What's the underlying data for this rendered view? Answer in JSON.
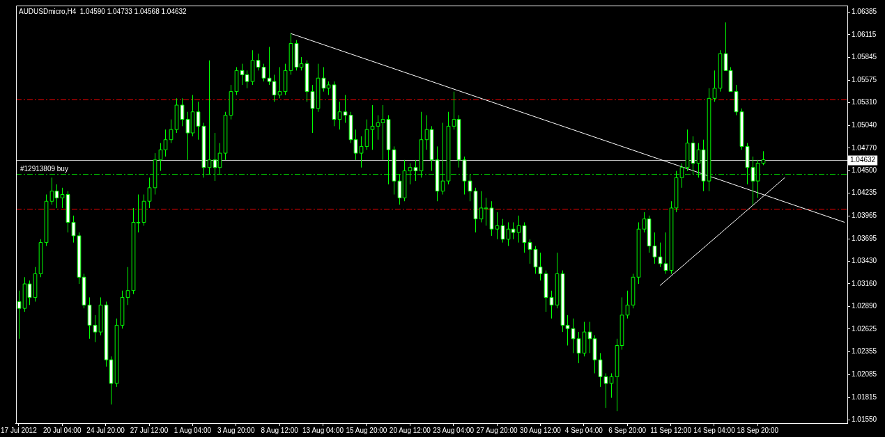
{
  "chart_data": {
    "type": "candlestick",
    "title": "AUDUSDmicro,H4  1.04590 1.04733 1.04568 1.04632",
    "color": "#00ff00",
    "categories": [
      "17 Jul 2012",
      null,
      null,
      null,
      null,
      null,
      null,
      null,
      "20 Jul 04:00",
      null,
      null,
      null,
      null,
      null,
      null,
      null,
      "24 Jul 20:00",
      null,
      null,
      null,
      null,
      null,
      null,
      null,
      "27 Jul 12:00",
      null,
      null,
      null,
      null,
      null,
      null,
      null,
      "1 Aug 04:00",
      null,
      null,
      null,
      null,
      null,
      null,
      null,
      "3 Aug 20:00",
      null,
      null,
      null,
      null,
      null,
      null,
      null,
      "8 Aug 12:00",
      null,
      null,
      null,
      null,
      null,
      null,
      null,
      "13 Aug 04:00",
      null,
      null,
      null,
      null,
      null,
      null,
      null,
      "15 Aug 20:00",
      null,
      null,
      null,
      null,
      null,
      null,
      null,
      "20 Aug 12:00",
      null,
      null,
      null,
      null,
      null,
      null,
      null,
      "23 Aug 04:00",
      null,
      null,
      null,
      null,
      null,
      null,
      null,
      "27 Aug 20:00",
      null,
      null,
      null,
      null,
      null,
      null,
      null,
      "30 Aug 12:00",
      null,
      null,
      null,
      null,
      null,
      null,
      null,
      "4 Sep 04:00",
      null,
      null,
      null,
      null,
      null,
      null,
      null,
      "6 Sep 20:00",
      null,
      null,
      null,
      null,
      null,
      null,
      null,
      "11 Sep 12:00",
      null,
      null,
      null,
      null,
      null,
      null,
      null,
      "14 Sep 04:00",
      null,
      null,
      null,
      null,
      null,
      null,
      null,
      "18 Sep 20:00",
      null,
      null,
      null,
      null,
      null,
      null,
      null,
      null,
      null,
      null,
      null,
      null,
      null,
      null,
      null,
      null
    ],
    "ohlc": [
      [
        1.0295,
        1.0308,
        1.0251,
        1.0287
      ],
      [
        1.0287,
        1.0324,
        1.0283,
        1.0316
      ],
      [
        1.0316,
        1.032,
        1.0291,
        1.03
      ],
      [
        1.03,
        1.0336,
        1.0295,
        1.0328
      ],
      [
        1.0328,
        1.0369,
        1.0324,
        1.0365
      ],
      [
        1.0365,
        1.0422,
        1.0361,
        1.0414
      ],
      [
        1.0414,
        1.0442,
        1.041,
        1.0426
      ],
      [
        1.0426,
        1.0434,
        1.0406,
        1.0418
      ],
      [
        1.0418,
        1.043,
        1.0406,
        1.0422
      ],
      [
        1.0422,
        1.0426,
        1.0377,
        1.0389
      ],
      [
        1.0389,
        1.0397,
        1.0365,
        1.0373
      ],
      [
        1.0373,
        1.0377,
        1.0316,
        1.0324
      ],
      [
        1.0324,
        1.0328,
        1.0287,
        1.0291
      ],
      [
        1.0291,
        1.03,
        1.0251,
        1.0267
      ],
      [
        1.0267,
        1.0279,
        1.0247,
        1.0259
      ],
      [
        1.0259,
        1.03,
        1.0255,
        1.0291
      ],
      [
        1.0291,
        1.0295,
        1.0218,
        1.0226
      ],
      [
        1.0226,
        1.023,
        1.0173,
        1.0198
      ],
      [
        1.0198,
        1.0275,
        1.0194,
        1.0267
      ],
      [
        1.0267,
        1.0308,
        1.0263,
        1.03
      ],
      [
        1.03,
        1.0336,
        1.0291,
        1.0308
      ],
      [
        1.0308,
        1.0406,
        1.0304,
        1.0389
      ],
      [
        1.0389,
        1.0422,
        1.0377,
        1.0389
      ],
      [
        1.0389,
        1.0422,
        1.0385,
        1.0414
      ],
      [
        1.0414,
        1.0442,
        1.0406,
        1.043
      ],
      [
        1.043,
        1.0471,
        1.0422,
        1.0463
      ],
      [
        1.0463,
        1.0483,
        1.045,
        1.0475
      ],
      [
        1.0475,
        1.0499,
        1.0467,
        1.0487
      ],
      [
        1.0487,
        1.0511,
        1.0483,
        1.0499
      ],
      [
        1.0499,
        1.0536,
        1.0495,
        1.0528
      ],
      [
        1.0528,
        1.0536,
        1.0503,
        1.0511
      ],
      [
        1.0511,
        1.052,
        1.0463,
        1.0495
      ],
      [
        1.0495,
        1.054,
        1.0491,
        1.052
      ],
      [
        1.052,
        1.0532,
        1.0487,
        1.0503
      ],
      [
        1.0503,
        1.0507,
        1.0442,
        1.0454
      ],
      [
        1.0454,
        1.0581,
        1.0446,
        1.0463
      ],
      [
        1.0463,
        1.0495,
        1.0438,
        1.0454
      ],
      [
        1.0454,
        1.0483,
        1.0446,
        1.0471
      ],
      [
        1.0471,
        1.052,
        1.0463,
        1.0516
      ],
      [
        1.0516,
        1.0552,
        1.0511,
        1.0544
      ],
      [
        1.0544,
        1.0573,
        1.054,
        1.0569
      ],
      [
        1.0569,
        1.0577,
        1.0552,
        1.0564
      ],
      [
        1.0564,
        1.0569,
        1.0548,
        1.0556
      ],
      [
        1.0556,
        1.0593,
        1.0552,
        1.0581
      ],
      [
        1.0581,
        1.0589,
        1.0569,
        1.0573
      ],
      [
        1.0573,
        1.0577,
        1.0556,
        1.056
      ],
      [
        1.056,
        1.0597,
        1.0552,
        1.0556
      ],
      [
        1.0556,
        1.0564,
        1.0532,
        1.054
      ],
      [
        1.054,
        1.0573,
        1.0536,
        1.0544
      ],
      [
        1.0544,
        1.0577,
        1.054,
        1.0569
      ],
      [
        1.0569,
        1.0613,
        1.0564,
        1.0601
      ],
      [
        1.0601,
        1.0605,
        1.0569,
        1.0573
      ],
      [
        1.0573,
        1.0585,
        1.0569,
        1.0577
      ],
      [
        1.0577,
        1.0581,
        1.0532,
        1.0544
      ],
      [
        1.0544,
        1.0552,
        1.0495,
        1.0524
      ],
      [
        1.0524,
        1.0577,
        1.052,
        1.056
      ],
      [
        1.056,
        1.0573,
        1.0544,
        1.0548
      ],
      [
        1.0548,
        1.0556,
        1.054,
        1.0552
      ],
      [
        1.0552,
        1.0556,
        1.0503,
        1.0511
      ],
      [
        1.0511,
        1.0532,
        1.0499,
        1.052
      ],
      [
        1.052,
        1.054,
        1.0507,
        1.0516
      ],
      [
        1.0516,
        1.052,
        1.0483,
        1.0487
      ],
      [
        1.0487,
        1.0499,
        1.0463,
        1.0471
      ],
      [
        1.0471,
        1.0491,
        1.0454,
        1.0479
      ],
      [
        1.0479,
        1.0511,
        1.0475,
        1.0499
      ],
      [
        1.0499,
        1.0528,
        1.0475,
        1.0503
      ],
      [
        1.0503,
        1.0516,
        1.0487,
        1.0507
      ],
      [
        1.0507,
        1.0528,
        1.0463,
        1.0511
      ],
      [
        1.0511,
        1.0516,
        1.0434,
        1.0475
      ],
      [
        1.0475,
        1.0479,
        1.0422,
        1.0438
      ],
      [
        1.0438,
        1.0446,
        1.041,
        1.0418
      ],
      [
        1.0418,
        1.0463,
        1.0414,
        1.045
      ],
      [
        1.045,
        1.0459,
        1.0434,
        1.0454
      ],
      [
        1.0454,
        1.0463,
        1.0438,
        1.045
      ],
      [
        1.045,
        1.052,
        1.0442,
        1.0487
      ],
      [
        1.0487,
        1.0516,
        1.0475,
        1.0499
      ],
      [
        1.0499,
        1.0503,
        1.045,
        1.0463
      ],
      [
        1.0463,
        1.0479,
        1.0414,
        1.0426
      ],
      [
        1.0426,
        1.0507,
        1.0422,
        1.0438
      ],
      [
        1.0438,
        1.052,
        1.0434,
        1.0503
      ],
      [
        1.0503,
        1.0544,
        1.0499,
        1.0511
      ],
      [
        1.0511,
        1.0516,
        1.0454,
        1.0463
      ],
      [
        1.0463,
        1.0467,
        1.0422,
        1.0438
      ],
      [
        1.0438,
        1.0446,
        1.0414,
        1.0426
      ],
      [
        1.0426,
        1.043,
        1.0377,
        1.0393
      ],
      [
        1.0393,
        1.0426,
        1.0389,
        1.0406
      ],
      [
        1.0406,
        1.0418,
        1.0385,
        1.0406
      ],
      [
        1.0406,
        1.0414,
        1.0373,
        1.0381
      ],
      [
        1.0381,
        1.0401,
        1.0369,
        1.0385
      ],
      [
        1.0385,
        1.0393,
        1.0365,
        1.0369
      ],
      [
        1.0369,
        1.0389,
        1.0361,
        1.0381
      ],
      [
        1.0381,
        1.0389,
        1.0369,
        1.0377
      ],
      [
        1.0377,
        1.0397,
        1.0365,
        1.0385
      ],
      [
        1.0385,
        1.0389,
        1.0353,
        1.0365
      ],
      [
        1.0365,
        1.0369,
        1.034,
        1.0357
      ],
      [
        1.0357,
        1.0361,
        1.0328,
        1.0336
      ],
      [
        1.0336,
        1.0353,
        1.032,
        1.0328
      ],
      [
        1.0328,
        1.0332,
        1.0283,
        1.03
      ],
      [
        1.03,
        1.0308,
        1.0275,
        1.0291
      ],
      [
        1.0291,
        1.0353,
        1.0287,
        1.0328
      ],
      [
        1.0328,
        1.0332,
        1.0259,
        1.0267
      ],
      [
        1.0267,
        1.0279,
        1.0243,
        1.0263
      ],
      [
        1.0263,
        1.0275,
        1.0234,
        1.0251
      ],
      [
        1.0251,
        1.0259,
        1.0222,
        1.0234
      ],
      [
        1.0234,
        1.0271,
        1.023,
        1.0259
      ],
      [
        1.0259,
        1.0271,
        1.0234,
        1.0251
      ],
      [
        1.0251,
        1.0255,
        1.021,
        1.0226
      ],
      [
        1.0226,
        1.0234,
        1.0194,
        1.0206
      ],
      [
        1.0206,
        1.021,
        1.0169,
        1.0198
      ],
      [
        1.0198,
        1.021,
        1.0181,
        1.0206
      ],
      [
        1.0206,
        1.0251,
        1.0165,
        1.0243
      ],
      [
        1.0243,
        1.03,
        1.0238,
        1.0279
      ],
      [
        1.0279,
        1.0308,
        1.0275,
        1.0291
      ],
      [
        1.0291,
        1.0328,
        1.0287,
        1.0324
      ],
      [
        1.0324,
        1.0389,
        1.0316,
        1.0381
      ],
      [
        1.0381,
        1.0401,
        1.0377,
        1.0393
      ],
      [
        1.0393,
        1.0397,
        1.0353,
        1.0361
      ],
      [
        1.0361,
        1.0377,
        1.034,
        1.0348
      ],
      [
        1.0348,
        1.0365,
        1.0336,
        1.034
      ],
      [
        1.034,
        1.0377,
        1.0328,
        1.0332
      ],
      [
        1.0332,
        1.0414,
        1.0328,
        1.0406
      ],
      [
        1.0406,
        1.045,
        1.0401,
        1.0442
      ],
      [
        1.0442,
        1.0459,
        1.043,
        1.0454
      ],
      [
        1.0454,
        1.0499,
        1.045,
        1.0483
      ],
      [
        1.0483,
        1.0491,
        1.0446,
        1.0459
      ],
      [
        1.0459,
        1.0483,
        1.0442,
        1.0475
      ],
      [
        1.0475,
        1.0487,
        1.0426,
        1.0438
      ],
      [
        1.0438,
        1.0548,
        1.0426,
        1.0536
      ],
      [
        1.0536,
        1.0569,
        1.0532,
        1.0548
      ],
      [
        1.0548,
        1.0593,
        1.0544,
        1.0589
      ],
      [
        1.0589,
        1.0626,
        1.0569,
        1.0569
      ],
      [
        1.0569,
        1.0573,
        1.0544,
        1.0544
      ],
      [
        1.0544,
        1.0552,
        1.0516,
        1.052
      ],
      [
        1.052,
        1.0524,
        1.0475,
        1.0479
      ],
      [
        1.0479,
        1.0483,
        1.0434,
        1.0454
      ],
      [
        1.0454,
        1.0467,
        1.041,
        1.0438
      ],
      [
        1.0438,
        1.0463,
        1.0418,
        1.0459
      ],
      [
        1.0459,
        1.04733,
        1.04568,
        1.04632
      ],
      null,
      null,
      null,
      null,
      null,
      null,
      null,
      null,
      null,
      null,
      null,
      null,
      null,
      null,
      null
    ],
    "series": [
      {
        "type": "line",
        "color": "#ffffff",
        "values": [
          null,
          null,
          null,
          null,
          null,
          null,
          null,
          null,
          null,
          null,
          null,
          null,
          null,
          null,
          null,
          null,
          null,
          null,
          null,
          null,
          null,
          null,
          null,
          null,
          null,
          null,
          null,
          null,
          null,
          null,
          null,
          null,
          null,
          null,
          null,
          null,
          null,
          null,
          null,
          null,
          null,
          null,
          null,
          null,
          null,
          null,
          null,
          null,
          null,
          null,
          1.0613,
          null,
          null,
          null,
          null,
          null,
          null,
          null,
          null,
          null,
          null,
          null,
          null,
          null,
          null,
          null,
          null,
          null,
          null,
          null,
          null,
          null,
          null,
          null,
          null,
          null,
          null,
          null,
          null,
          null,
          null,
          null,
          null,
          null,
          null,
          null,
          null,
          null,
          null,
          null,
          null,
          null,
          null,
          null,
          null,
          null,
          null,
          null,
          null,
          null,
          null,
          null,
          null,
          null,
          null,
          null,
          null,
          null,
          null,
          null,
          null,
          null,
          null,
          null,
          null,
          null,
          null,
          null,
          null,
          null,
          null,
          null,
          null,
          null,
          null,
          null,
          null,
          null,
          null,
          null,
          null,
          null,
          null,
          null,
          null,
          null,
          null,
          null,
          null,
          null,
          null,
          null,
          null,
          null,
          null,
          null,
          null,
          null,
          null,
          null,
          null,
          null,
          1.0389
        ]
      },
      {
        "type": "line",
        "color": "#ffffff",
        "values": [
          null,
          null,
          null,
          null,
          null,
          null,
          null,
          null,
          null,
          null,
          null,
          null,
          null,
          null,
          null,
          null,
          null,
          null,
          null,
          null,
          null,
          null,
          null,
          null,
          null,
          null,
          null,
          null,
          null,
          null,
          null,
          null,
          null,
          null,
          null,
          null,
          null,
          null,
          null,
          null,
          null,
          null,
          null,
          null,
          null,
          null,
          null,
          null,
          null,
          null,
          null,
          null,
          null,
          null,
          null,
          null,
          null,
          null,
          null,
          null,
          null,
          null,
          null,
          null,
          null,
          null,
          null,
          null,
          null,
          null,
          null,
          null,
          null,
          null,
          null,
          null,
          null,
          null,
          null,
          null,
          null,
          null,
          null,
          null,
          null,
          null,
          null,
          null,
          null,
          null,
          null,
          null,
          null,
          null,
          null,
          null,
          null,
          null,
          null,
          null,
          null,
          null,
          null,
          null,
          null,
          null,
          null,
          null,
          null,
          null,
          null,
          null,
          null,
          null,
          null,
          null,
          null,
          null,
          1.0314,
          null,
          null,
          null,
          null,
          null,
          null,
          null,
          null,
          null,
          null,
          null,
          null,
          null,
          null,
          null,
          null,
          null,
          null,
          null,
          null,
          null,
          null,
          1.0442,
          null,
          null,
          null,
          null,
          null,
          null,
          null,
          null,
          null,
          null,
          null
        ]
      }
    ],
    "colors": [
      "#ffffff",
      "#000000",
      "#ffffff",
      "#000000",
      "#000000",
      "#000000",
      "#000000",
      "#ffffff",
      "#000000",
      "#ffffff",
      "#ffffff",
      "#ffffff",
      "#ffffff",
      "#ffffff",
      "#ffffff",
      "#000000",
      "#ffffff",
      "#ffffff",
      "#000000",
      "#000000",
      "#000000",
      "#000000",
      "#000000",
      "#000000",
      "#000000",
      "#000000",
      "#000000",
      "#000000",
      "#000000",
      "#000000",
      "#ffffff",
      "#ffffff",
      "#000000",
      "#ffffff",
      "#ffffff",
      "#000000",
      "#ffffff",
      "#000000",
      "#000000",
      "#000000",
      "#000000",
      "#ffffff",
      "#ffffff",
      "#000000",
      "#ffffff",
      "#ffffff",
      "#ffffff",
      "#ffffff",
      "#000000",
      "#000000",
      "#000000",
      "#ffffff",
      "#000000",
      "#ffffff",
      "#ffffff",
      "#000000",
      "#ffffff",
      "#000000",
      "#ffffff",
      "#000000",
      "#ffffff",
      "#ffffff",
      "#ffffff",
      "#000000",
      "#000000",
      "#000000",
      "#000000",
      "#000000",
      "#ffffff",
      "#ffffff",
      "#ffffff",
      "#000000",
      "#000000",
      "#ffffff",
      "#000000",
      "#000000",
      "#ffffff",
      "#ffffff",
      "#000000",
      "#000000",
      "#000000",
      "#ffffff",
      "#ffffff",
      "#ffffff",
      "#ffffff",
      "#000000",
      "#000000",
      "#ffffff",
      "#000000",
      "#ffffff",
      "#000000",
      "#ffffff",
      "#000000",
      "#ffffff",
      "#ffffff",
      "#ffffff",
      "#ffffff",
      "#ffffff",
      "#ffffff",
      "#000000",
      "#ffffff",
      "#ffffff",
      "#ffffff",
      "#ffffff",
      "#000000",
      "#ffffff",
      "#ffffff",
      "#ffffff",
      "#ffffff",
      "#000000",
      "#000000",
      "#000000",
      "#000000",
      "#000000",
      "#000000",
      "#000000",
      "#ffffff",
      "#ffffff",
      "#ffffff",
      "#ffffff",
      "#000000",
      "#000000",
      "#000000",
      "#000000",
      "#ffffff",
      "#000000",
      "#ffffff",
      "#000000",
      "#000000",
      "#000000",
      "#ffffff",
      "#ffffff",
      "#ffffff",
      "#ffffff",
      "#ffffff",
      "#ffffff",
      "#000000",
      "#000000",
      null,
      null,
      null,
      null,
      null,
      null,
      null,
      null,
      null,
      null,
      null,
      null,
      null,
      null,
      null
    ],
    "ylim": [
      1.0151,
      1.0646
    ],
    "yticks": [
      1.06385,
      1.06115,
      1.05845,
      1.05575,
      {
        "value": 1.0531,
        "label": "1.05310"
      },
      {
        "value": 1.0504,
        "label": "1.05040"
      },
      {
        "value": 1.0477,
        "label": "1.04770"
      },
      {
        "value": 1.045,
        "label": "1.04500"
      },
      1.04235,
      1.03965,
      1.03695,
      {
        "value": 1.0343,
        "label": "1.03430"
      },
      {
        "value": 1.0316,
        "label": "1.03160"
      },
      {
        "value": 1.0289,
        "label": "1.02890"
      },
      1.02625,
      1.02355,
      1.02085,
      1.01815,
      {
        "value": 1.0155,
        "label": "1.01550"
      }
    ],
    "ref_lines": [
      {
        "axis": "y",
        "value": 1.0535,
        "color": "#ff0000",
        "line_style": "dashed"
      },
      {
        "axis": "y",
        "value": 1.0405,
        "color": "#ff0000",
        "line_style": "dashed"
      },
      {
        "axis": "y",
        "value": 1.0446,
        "color": "#00c000",
        "line_style": "dashed",
        "label": "#12913809 buy"
      },
      {
        "axis": "y",
        "value": 1.04632,
        "color": "#c0c0c0",
        "line_style": "solid",
        "label": "1.04632"
      }
    ]
  }
}
